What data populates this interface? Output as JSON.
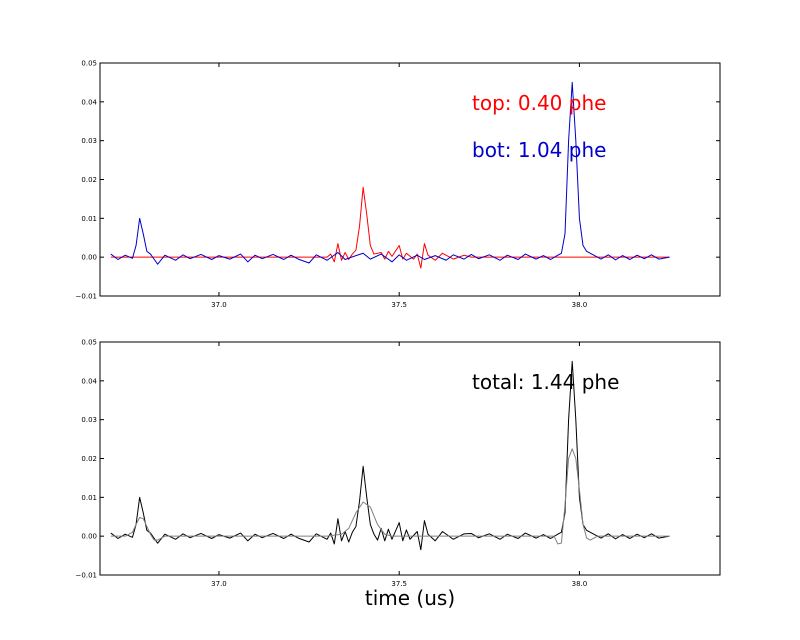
{
  "chart_data": [
    {
      "type": "line",
      "xlim": [
        36.67,
        38.39
      ],
      "ylim": [
        -0.01,
        0.05
      ],
      "x_ticks": [
        "37.0",
        "37.5",
        "38.0"
      ],
      "y_ticks": [
        "0.05",
        "0.04",
        "0.03",
        "0.02",
        "0.01",
        "0.00",
        "−0.01"
      ],
      "annotations": [
        {
          "text": "top: 0.40 phe",
          "color": "#ff0000"
        },
        {
          "text": "bot: 1.04 phe",
          "color": "#0000cc"
        }
      ],
      "series": [
        {
          "color": "#ff0000",
          "points": [
            [
              36.7,
              0.0
            ],
            [
              37.3,
              0.0
            ],
            [
              37.31,
              0.0008
            ],
            [
              37.32,
              -0.0012
            ],
            [
              37.33,
              0.0035
            ],
            [
              37.34,
              -0.0008
            ],
            [
              37.35,
              0.0012
            ],
            [
              37.36,
              -0.0006
            ],
            [
              37.37,
              0.0008
            ],
            [
              37.38,
              0.0018
            ],
            [
              37.39,
              0.008
            ],
            [
              37.4,
              0.018
            ],
            [
              37.41,
              0.011
            ],
            [
              37.42,
              0.003
            ],
            [
              37.43,
              0.0008
            ],
            [
              37.45,
              0.0012
            ],
            [
              37.46,
              -0.0005
            ],
            [
              37.47,
              0.0015
            ],
            [
              37.48,
              0.0002
            ],
            [
              37.5,
              0.003
            ],
            [
              37.51,
              -0.0005
            ],
            [
              37.52,
              0.001
            ],
            [
              37.54,
              -0.0005
            ],
            [
              37.55,
              0.0008
            ],
            [
              37.56,
              -0.0028
            ],
            [
              37.57,
              0.0035
            ],
            [
              37.58,
              0.0005
            ],
            [
              37.6,
              -0.0008
            ],
            [
              37.62,
              0.001
            ],
            [
              37.65,
              -0.0005
            ],
            [
              37.68,
              0.0005
            ],
            [
              37.7,
              0.0
            ],
            [
              38.25,
              0.0
            ]
          ]
        },
        {
          "color": "#0000cc",
          "points": [
            [
              36.7,
              0.0008
            ],
            [
              36.72,
              -0.0006
            ],
            [
              36.74,
              0.0005
            ],
            [
              36.76,
              -0.0003
            ],
            [
              36.77,
              0.003
            ],
            [
              36.78,
              0.01
            ],
            [
              36.79,
              0.006
            ],
            [
              36.8,
              0.0015
            ],
            [
              36.81,
              0.0008
            ],
            [
              36.82,
              -0.0005
            ],
            [
              36.83,
              -0.0018
            ],
            [
              36.85,
              0.0005
            ],
            [
              36.88,
              -0.0008
            ],
            [
              36.9,
              0.0006
            ],
            [
              36.92,
              -0.0004
            ],
            [
              36.95,
              0.0007
            ],
            [
              36.98,
              -0.0006
            ],
            [
              37.0,
              0.0004
            ],
            [
              37.03,
              -0.0005
            ],
            [
              37.06,
              0.0008
            ],
            [
              37.08,
              -0.0012
            ],
            [
              37.1,
              0.0005
            ],
            [
              37.12,
              -0.0004
            ],
            [
              37.15,
              0.0007
            ],
            [
              37.18,
              -0.0006
            ],
            [
              37.2,
              0.0005
            ],
            [
              37.22,
              -0.0005
            ],
            [
              37.25,
              -0.0015
            ],
            [
              37.27,
              0.0006
            ],
            [
              37.3,
              -0.0008
            ],
            [
              37.33,
              0.0012
            ],
            [
              37.35,
              -0.0006
            ],
            [
              37.38,
              0.0004
            ],
            [
              37.4,
              0.001
            ],
            [
              37.42,
              -0.0005
            ],
            [
              37.45,
              0.0008
            ],
            [
              37.48,
              -0.0012
            ],
            [
              37.5,
              0.0006
            ],
            [
              37.52,
              -0.0008
            ],
            [
              37.55,
              0.0005
            ],
            [
              37.57,
              -0.0006
            ],
            [
              37.6,
              0.0004
            ],
            [
              37.63,
              -0.0008
            ],
            [
              37.65,
              0.0006
            ],
            [
              37.68,
              -0.0005
            ],
            [
              37.7,
              0.0007
            ],
            [
              37.72,
              -0.0004
            ],
            [
              37.75,
              0.0006
            ],
            [
              37.78,
              -0.0008
            ],
            [
              37.8,
              0.0005
            ],
            [
              37.83,
              -0.0006
            ],
            [
              37.85,
              0.0008
            ],
            [
              37.88,
              -0.0005
            ],
            [
              37.9,
              0.0004
            ],
            [
              37.92,
              -0.0006
            ],
            [
              37.94,
              0.0005
            ],
            [
              37.95,
              0.001
            ],
            [
              37.96,
              0.006
            ],
            [
              37.97,
              0.03
            ],
            [
              37.98,
              0.045
            ],
            [
              37.99,
              0.03
            ],
            [
              38.0,
              0.01
            ],
            [
              38.01,
              0.003
            ],
            [
              38.02,
              0.0015
            ],
            [
              38.04,
              0.0005
            ],
            [
              38.06,
              -0.0005
            ],
            [
              38.08,
              0.0006
            ],
            [
              38.1,
              -0.0007
            ],
            [
              38.12,
              0.0004
            ],
            [
              38.14,
              -0.0006
            ],
            [
              38.16,
              0.0005
            ],
            [
              38.18,
              -0.0004
            ],
            [
              38.2,
              0.0006
            ],
            [
              38.22,
              -0.0005
            ],
            [
              38.25,
              0.0
            ]
          ]
        }
      ]
    },
    {
      "type": "line",
      "xlim": [
        36.67,
        38.39
      ],
      "ylim": [
        -0.01,
        0.05
      ],
      "x_ticks": [
        "37.0",
        "37.5",
        "38.0"
      ],
      "y_ticks": [
        "0.05",
        "0.04",
        "0.03",
        "0.02",
        "0.01",
        "0.00",
        "−0.01"
      ],
      "xlabel": "time (us)",
      "annotations": [
        {
          "text": "total: 1.44 phe",
          "color": "#000000"
        }
      ],
      "series": [
        {
          "color": "#000000",
          "points": [
            [
              36.7,
              0.0008
            ],
            [
              36.72,
              -0.0006
            ],
            [
              36.74,
              0.0005
            ],
            [
              36.76,
              -0.0003
            ],
            [
              36.77,
              0.003
            ],
            [
              36.78,
              0.01
            ],
            [
              36.79,
              0.006
            ],
            [
              36.8,
              0.0015
            ],
            [
              36.81,
              0.0008
            ],
            [
              36.82,
              -0.0005
            ],
            [
              36.83,
              -0.0018
            ],
            [
              36.85,
              0.0005
            ],
            [
              36.88,
              -0.0008
            ],
            [
              36.9,
              0.0006
            ],
            [
              36.92,
              -0.0004
            ],
            [
              36.95,
              0.0007
            ],
            [
              36.98,
              -0.0006
            ],
            [
              37.0,
              0.0004
            ],
            [
              37.03,
              -0.0005
            ],
            [
              37.06,
              0.0008
            ],
            [
              37.08,
              -0.0012
            ],
            [
              37.1,
              0.0005
            ],
            [
              37.12,
              -0.0004
            ],
            [
              37.15,
              0.0007
            ],
            [
              37.18,
              -0.0006
            ],
            [
              37.2,
              0.0005
            ],
            [
              37.22,
              -0.0005
            ],
            [
              37.25,
              -0.0015
            ],
            [
              37.27,
              0.0006
            ],
            [
              37.3,
              -0.0008
            ],
            [
              37.31,
              0.0008
            ],
            [
              37.32,
              -0.002
            ],
            [
              37.33,
              0.0045
            ],
            [
              37.34,
              -0.0012
            ],
            [
              37.35,
              0.0012
            ],
            [
              37.36,
              -0.0015
            ],
            [
              37.37,
              0.001
            ],
            [
              37.38,
              0.0025
            ],
            [
              37.39,
              0.009
            ],
            [
              37.4,
              0.018
            ],
            [
              37.41,
              0.01
            ],
            [
              37.42,
              0.003
            ],
            [
              37.43,
              0.0005
            ],
            [
              37.44,
              -0.001
            ],
            [
              37.45,
              0.002
            ],
            [
              37.46,
              -0.0012
            ],
            [
              37.47,
              0.0018
            ],
            [
              37.48,
              -0.0008
            ],
            [
              37.5,
              0.0035
            ],
            [
              37.51,
              -0.0012
            ],
            [
              37.52,
              0.0016
            ],
            [
              37.53,
              -0.0008
            ],
            [
              37.55,
              0.0012
            ],
            [
              37.56,
              -0.0035
            ],
            [
              37.57,
              0.004
            ],
            [
              37.58,
              0.0005
            ],
            [
              37.6,
              -0.0012
            ],
            [
              37.62,
              0.0012
            ],
            [
              37.65,
              -0.0008
            ],
            [
              37.68,
              0.0006
            ],
            [
              37.7,
              0.0007
            ],
            [
              37.72,
              -0.0004
            ],
            [
              37.75,
              0.0006
            ],
            [
              37.78,
              -0.0008
            ],
            [
              37.8,
              0.0005
            ],
            [
              37.83,
              -0.0006
            ],
            [
              37.85,
              0.0008
            ],
            [
              37.88,
              -0.0005
            ],
            [
              37.9,
              0.0004
            ],
            [
              37.92,
              -0.0006
            ],
            [
              37.94,
              0.0005
            ],
            [
              37.95,
              0.001
            ],
            [
              37.96,
              0.006
            ],
            [
              37.97,
              0.03
            ],
            [
              37.98,
              0.045
            ],
            [
              37.99,
              0.03
            ],
            [
              38.0,
              0.01
            ],
            [
              38.01,
              0.003
            ],
            [
              38.02,
              0.0015
            ],
            [
              38.04,
              0.0005
            ],
            [
              38.06,
              -0.0005
            ],
            [
              38.08,
              0.0006
            ],
            [
              38.1,
              -0.0007
            ],
            [
              38.12,
              0.0004
            ],
            [
              38.14,
              -0.0006
            ],
            [
              38.16,
              0.0005
            ],
            [
              38.18,
              -0.0004
            ],
            [
              38.2,
              0.0006
            ],
            [
              38.22,
              -0.0005
            ],
            [
              38.25,
              0.0
            ]
          ]
        },
        {
          "color": "#808080",
          "points": [
            [
              36.7,
              0.0
            ],
            [
              36.74,
              0.0
            ],
            [
              36.76,
              0.001
            ],
            [
              36.77,
              0.003
            ],
            [
              36.78,
              0.0048
            ],
            [
              36.79,
              0.0045
            ],
            [
              36.8,
              0.0025
            ],
            [
              36.81,
              0.0005
            ],
            [
              36.82,
              -0.001
            ],
            [
              36.83,
              -0.001
            ],
            [
              36.85,
              0.0
            ],
            [
              37.3,
              0.0
            ],
            [
              37.34,
              0.0005
            ],
            [
              37.36,
              0.002
            ],
            [
              37.38,
              0.006
            ],
            [
              37.4,
              0.0088
            ],
            [
              37.42,
              0.0075
            ],
            [
              37.44,
              0.003
            ],
            [
              37.46,
              0.0005
            ],
            [
              37.48,
              0.0
            ],
            [
              37.93,
              0.0
            ],
            [
              37.94,
              -0.002
            ],
            [
              37.95,
              -0.0018
            ],
            [
              37.96,
              0.008
            ],
            [
              37.97,
              0.02
            ],
            [
              37.98,
              0.0225
            ],
            [
              37.99,
              0.02
            ],
            [
              38.0,
              0.012
            ],
            [
              38.01,
              0.003
            ],
            [
              38.02,
              -0.0005
            ],
            [
              38.03,
              -0.001
            ],
            [
              38.05,
              0.0
            ],
            [
              38.25,
              0.0
            ]
          ]
        }
      ]
    }
  ]
}
